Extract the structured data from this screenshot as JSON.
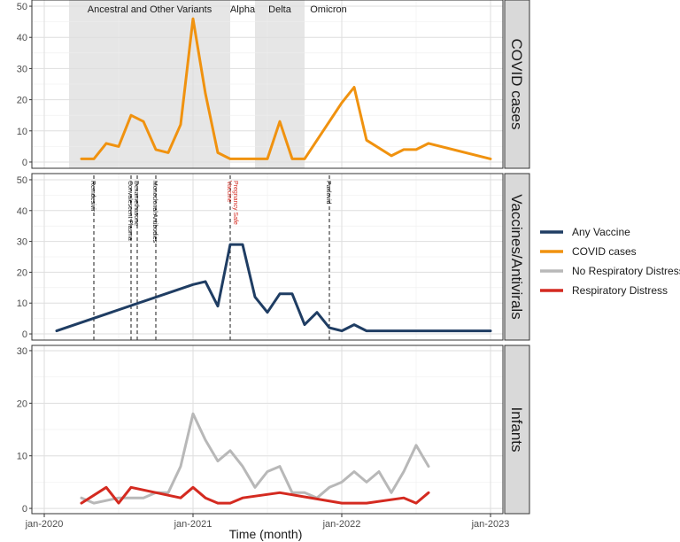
{
  "chart_data": {
    "type": "line",
    "x_axis": {
      "title": "Time (month)",
      "ticks": [
        {
          "label": "jan-2020",
          "value": "2020-01"
        },
        {
          "label": "jan-2021",
          "value": "2021-01"
        },
        {
          "label": "jan-2022",
          "value": "2022-01"
        },
        {
          "label": "jan-2023",
          "value": "2023-01"
        }
      ],
      "range": [
        "2019-12",
        "2023-02"
      ]
    },
    "colors": {
      "any_vaccine": "#1f3d63",
      "covid_cases": "#f0920f",
      "no_respiratory_distress": "#b8b8b8",
      "respiratory_distress": "#d42a20",
      "period_shading": "#e6e6e6",
      "event_highlight": "#d42a20"
    },
    "legend": [
      {
        "label": "Any Vaccine",
        "series": "any_vaccine"
      },
      {
        "label": "COVID cases",
        "series": "covid_cases"
      },
      {
        "label": "No Respiratory Distress",
        "series": "no_respiratory_distress"
      },
      {
        "label": "Respiratory Distress",
        "series": "respiratory_distress"
      }
    ],
    "panels": [
      {
        "strip": "COVID cases",
        "ylim": [
          -2,
          52
        ],
        "yticks": [
          0,
          10,
          20,
          30,
          40,
          50
        ],
        "periods": [
          {
            "label": "Ancestral and Other Variants",
            "start": "2020-03",
            "end": "2021-04",
            "shaded": true
          },
          {
            "label": "Alpha",
            "start": "2021-04",
            "end": "2021-06",
            "shaded": false
          },
          {
            "label": "Delta",
            "start": "2021-06",
            "end": "2021-10",
            "shaded": true
          },
          {
            "label": "Omicron",
            "start": "2021-10",
            "end": "2023-01",
            "shaded": false
          }
        ],
        "series": [
          {
            "name": "COVID cases",
            "key": "covid_cases",
            "points": [
              [
                "2020-04",
                1
              ],
              [
                "2020-05",
                1
              ],
              [
                "2020-06",
                6
              ],
              [
                "2020-07",
                5
              ],
              [
                "2020-08",
                15
              ],
              [
                "2020-09",
                13
              ],
              [
                "2020-10",
                4
              ],
              [
                "2020-11",
                3
              ],
              [
                "2020-12",
                12
              ],
              [
                "2021-01",
                46
              ],
              [
                "2021-02",
                22
              ],
              [
                "2021-03",
                3
              ],
              [
                "2021-04",
                1
              ],
              [
                "2021-07",
                1
              ],
              [
                "2021-08",
                13
              ],
              [
                "2021-09",
                1
              ],
              [
                "2021-10",
                1
              ],
              [
                "2022-01",
                19
              ],
              [
                "2022-02",
                24
              ],
              [
                "2022-03",
                7
              ],
              [
                "2022-05",
                2
              ],
              [
                "2022-06",
                4
              ],
              [
                "2022-07",
                4
              ],
              [
                "2022-08",
                6
              ],
              [
                "2023-01",
                1
              ]
            ]
          }
        ]
      },
      {
        "strip": "Vaccines/Antivirals",
        "ylim": [
          -2,
          52
        ],
        "yticks": [
          0,
          10,
          20,
          30,
          40,
          50
        ],
        "events": [
          {
            "label": "Remdesivir",
            "date": "2020-05",
            "highlight": false
          },
          {
            "label": "Convalescent Plasma",
            "date": "2020-08",
            "highlight": false
          },
          {
            "label": "Dexamethasone",
            "date": "2020-08.5",
            "highlight": false
          },
          {
            "label": "Monoclonal Antibodies",
            "date": "2020-10",
            "highlight": false
          },
          {
            "label": "Vaccine\nPregnancy Safe",
            "date": "2021-04",
            "highlight": true
          },
          {
            "label": "Paxlovid",
            "date": "2021-12",
            "highlight": false
          }
        ],
        "series": [
          {
            "name": "Any Vaccine",
            "key": "any_vaccine",
            "points": [
              [
                "2020-02",
                1
              ],
              [
                "2021-01",
                16
              ],
              [
                "2021-02",
                17
              ],
              [
                "2021-03",
                9
              ],
              [
                "2021-04",
                29
              ],
              [
                "2021-05",
                29
              ],
              [
                "2021-06",
                12
              ],
              [
                "2021-07",
                7
              ],
              [
                "2021-08",
                13
              ],
              [
                "2021-09",
                13
              ],
              [
                "2021-10",
                3
              ],
              [
                "2021-11",
                7
              ],
              [
                "2021-12",
                2
              ],
              [
                "2022-01",
                1
              ],
              [
                "2022-02",
                3
              ],
              [
                "2022-03",
                1
              ],
              [
                "2023-01",
                1
              ]
            ]
          }
        ]
      },
      {
        "strip": "Infants",
        "ylim": [
          -1,
          31
        ],
        "yticks": [
          0,
          10,
          20,
          30
        ],
        "series": [
          {
            "name": "No Respiratory Distress",
            "key": "no_respiratory_distress",
            "points": [
              [
                "2020-04",
                2
              ],
              [
                "2020-05",
                1
              ],
              [
                "2020-06",
                1.5
              ],
              [
                "2020-07",
                2
              ],
              [
                "2020-08",
                2
              ],
              [
                "2020-09",
                2
              ],
              [
                "2020-10",
                3
              ],
              [
                "2020-11",
                3
              ],
              [
                "2020-12",
                8
              ],
              [
                "2021-01",
                18
              ],
              [
                "2021-02",
                13
              ],
              [
                "2021-03",
                9
              ],
              [
                "2021-04",
                11
              ],
              [
                "2021-05",
                8
              ],
              [
                "2021-06",
                4
              ],
              [
                "2021-07",
                7
              ],
              [
                "2021-08",
                8
              ],
              [
                "2021-09",
                3
              ],
              [
                "2021-10",
                3
              ],
              [
                "2021-11",
                2
              ],
              [
                "2021-12",
                4
              ],
              [
                "2022-01",
                5
              ],
              [
                "2022-02",
                7
              ],
              [
                "2022-03",
                5
              ],
              [
                "2022-04",
                7
              ],
              [
                "2022-05",
                3
              ],
              [
                "2022-06",
                7
              ],
              [
                "2022-07",
                12
              ],
              [
                "2022-08",
                8
              ]
            ]
          },
          {
            "name": "Respiratory Distress",
            "key": "respiratory_distress",
            "points": [
              [
                "2020-04",
                1
              ],
              [
                "2020-06",
                4
              ],
              [
                "2020-07",
                1
              ],
              [
                "2020-08",
                4
              ],
              [
                "2020-12",
                2
              ],
              [
                "2021-01",
                4
              ],
              [
                "2021-02",
                2
              ],
              [
                "2021-03",
                1
              ],
              [
                "2021-04",
                1
              ],
              [
                "2021-05",
                2
              ],
              [
                "2021-08",
                3
              ],
              [
                "2022-01",
                1
              ],
              [
                "2022-03",
                1
              ],
              [
                "2022-06",
                2
              ],
              [
                "2022-07",
                1
              ],
              [
                "2022-08",
                3
              ]
            ]
          }
        ]
      }
    ]
  }
}
